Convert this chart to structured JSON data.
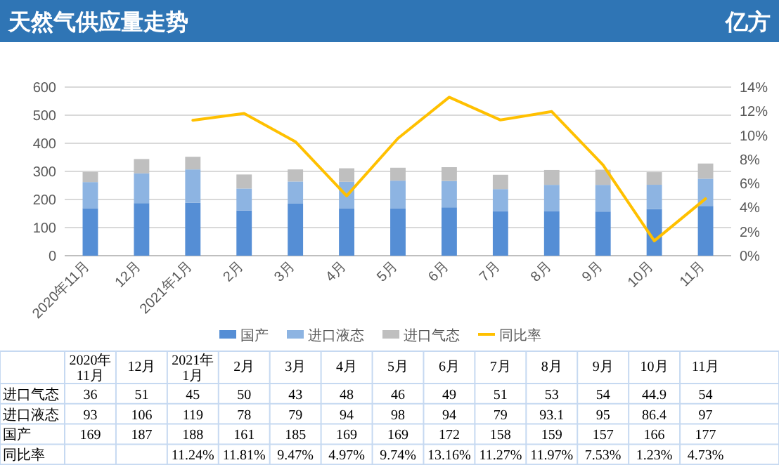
{
  "chart_data": {
    "type": "bar",
    "title": "天然气供应量走势",
    "annotations": [
      "亿方"
    ],
    "stacked": true,
    "grid": "y",
    "legend": "bottom",
    "categories": [
      "2020年11月",
      "12月",
      "2021年1月",
      "2月",
      "3月",
      "4月",
      "5月",
      "6月",
      "7月",
      "8月",
      "9月",
      "10月",
      "11月"
    ],
    "series": [
      {
        "name": "国产",
        "color": "#558ed5",
        "values": [
          169,
          187,
          188,
          161,
          185,
          169,
          169,
          172,
          158,
          159,
          157,
          166,
          177
        ],
        "value_labels": [
          "169",
          "187",
          "188",
          "161",
          "185",
          "169",
          "169",
          "172",
          "158",
          "159",
          "157",
          "166",
          "177"
        ]
      },
      {
        "name": "进口液态",
        "color": "#8db4e2",
        "values": [
          93,
          106,
          119,
          78,
          79,
          94,
          98,
          94,
          79,
          93.1,
          95,
          86.4,
          97
        ],
        "value_labels": [
          "93",
          "106",
          "119",
          "78",
          "79",
          "94",
          "98",
          "94",
          "79",
          "93.1",
          "95",
          "86.4",
          "97"
        ]
      },
      {
        "name": "进口气态",
        "color": "#bfbfbf",
        "values": [
          36,
          51,
          45,
          50,
          43,
          48,
          46,
          49,
          51,
          53,
          54,
          44.9,
          54
        ],
        "value_labels": [
          "36",
          "51",
          "45",
          "50",
          "43",
          "48",
          "46",
          "49",
          "51",
          "53",
          "54",
          "44.9",
          "54"
        ]
      },
      {
        "name": "同比率",
        "type": "line",
        "axis": "y2",
        "color": "#ffc000",
        "values": [
          null,
          null,
          11.24,
          11.81,
          9.47,
          4.97,
          9.74,
          13.16,
          11.27,
          11.97,
          7.53,
          1.23,
          4.73
        ],
        "value_labels": [
          null,
          null,
          "11.24%",
          "11.81%",
          "9.47%",
          "4.97%",
          "9.74%",
          "13.16%",
          "11.27%",
          "11.97%",
          "7.53%",
          "1.23%",
          "4.73%"
        ]
      }
    ],
    "ylim": [
      0,
      600
    ],
    "yticks": [
      0,
      100,
      200,
      300,
      400,
      500,
      600
    ],
    "y2lim": [
      0,
      14
    ],
    "y2ticks": [
      {
        "value": 0,
        "label": "0%"
      },
      {
        "value": 2,
        "label": "2%"
      },
      {
        "value": 4,
        "label": "4%"
      },
      {
        "value": 6,
        "label": "6%"
      },
      {
        "value": 8,
        "label": "8%"
      },
      {
        "value": 10,
        "label": "10%"
      },
      {
        "value": 12,
        "label": "12%"
      },
      {
        "value": 14,
        "label": "14%"
      }
    ]
  }
}
